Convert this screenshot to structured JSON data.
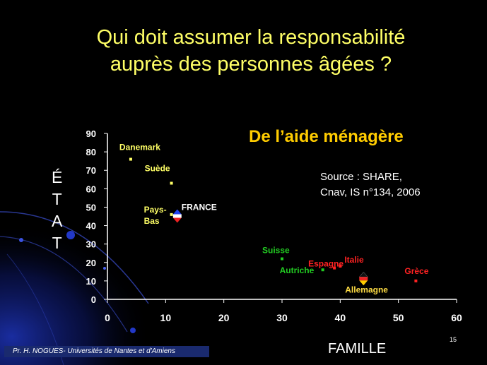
{
  "title": {
    "line1": "Qui doit assumer la responsabilité",
    "line2": "auprès des personnes âgées ?"
  },
  "subtitle": "De l’aide ménagère",
  "source": {
    "line1": "Source : SHARE,",
    "line2": "Cnav, IS n°134, 2006"
  },
  "y_axis_label_letters": [
    "É",
    "T",
    "A",
    "T"
  ],
  "x_axis_label": "FAMILLE",
  "page_number": "15",
  "footer": "Pr. H. NOGUES- Universités de Nantes et d'Amiens",
  "colors": {
    "background": "#000000",
    "title": "#ffff66",
    "subtitle": "#ffcc00",
    "north": "#ffff66",
    "central": "#22cc22",
    "south": "#ff2222",
    "france": "#ffffff",
    "germany": "#ffdd44"
  },
  "chart_data": {
    "type": "scatter",
    "xlim": [
      0,
      60
    ],
    "ylim": [
      0,
      90
    ],
    "x_ticks": [
      0,
      10,
      20,
      30,
      40,
      50,
      60
    ],
    "y_ticks": [
      0,
      10,
      20,
      30,
      40,
      50,
      60,
      70,
      80,
      90
    ],
    "grid": false,
    "points": [
      {
        "label": "Danemark",
        "x": 4,
        "y": 76,
        "color": "#ffff66",
        "marker": "square"
      },
      {
        "label": "Suède",
        "x": 11,
        "y": 63,
        "color": "#ffff66",
        "marker": "square"
      },
      {
        "label": "Pays-Bas",
        "x": 11,
        "y": 46,
        "color": "#ffff66",
        "marker": "square"
      },
      {
        "label": "FRANCE",
        "x": 12,
        "y": 45,
        "color": "#ffffff",
        "marker": "flag-fr"
      },
      {
        "label": "Suisse",
        "x": 30,
        "y": 22,
        "color": "#22cc22",
        "marker": "square"
      },
      {
        "label": "Autriche",
        "x": 37,
        "y": 16,
        "color": "#22cc22",
        "marker": "square"
      },
      {
        "label": "Espagne",
        "x": 39,
        "y": 17,
        "color": "#ff2222",
        "marker": "square"
      },
      {
        "label": "Italie",
        "x": 40,
        "y": 18,
        "color": "#ff2222",
        "marker": "square"
      },
      {
        "label": "Allemagne",
        "x": 44,
        "y": 11,
        "color": "#ffdd44",
        "marker": "flag-de"
      },
      {
        "label": "Grèce",
        "x": 53,
        "y": 10,
        "color": "#ff2222",
        "marker": "square"
      }
    ]
  }
}
